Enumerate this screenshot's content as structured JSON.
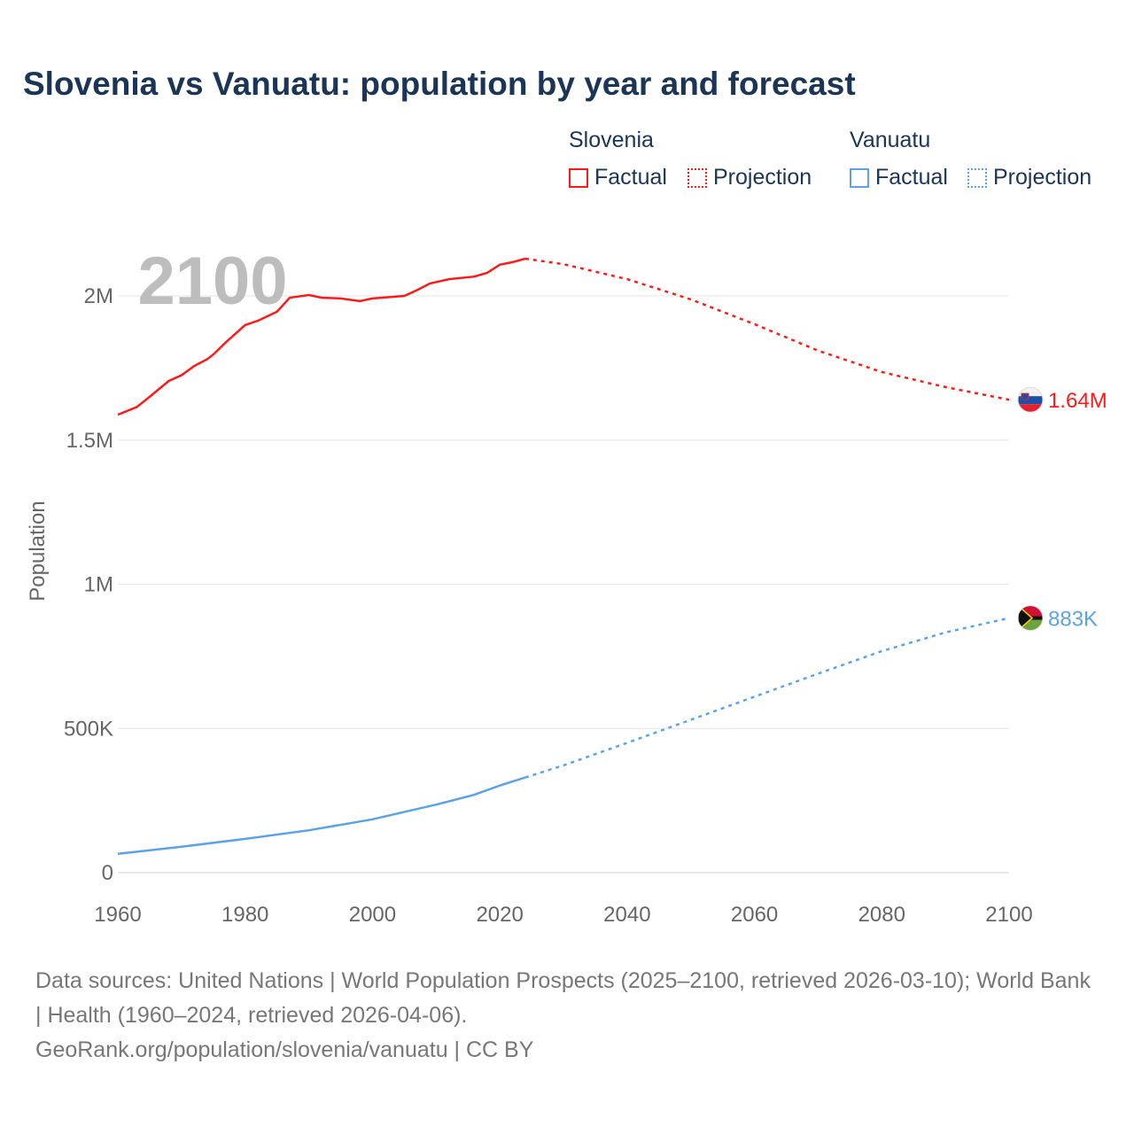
{
  "title": "Slovenia vs Vanuatu: population by year and forecast",
  "legend": {
    "groups": [
      {
        "name": "Slovenia",
        "items": [
          "Factual",
          "Projection"
        ]
      },
      {
        "name": "Vanuatu",
        "items": [
          "Factual",
          "Projection"
        ]
      }
    ]
  },
  "year_label": "2100",
  "footer": {
    "sources": "Data sources: United Nations | World Population Prospects (2025–2100, retrieved 2026-03-10); World Bank | Health (1960–2024, retrieved 2026-04-06).",
    "link": "GeoRank.org/population/slovenia/vanuatu | CC BY"
  },
  "chart_data": {
    "type": "line",
    "title": "Slovenia vs Vanuatu: population by year and forecast",
    "xlabel": "",
    "ylabel": "Population",
    "xlim": [
      1960,
      2100
    ],
    "ylim": [
      0,
      2200000
    ],
    "x_ticks": [
      "1960",
      "1980",
      "2000",
      "2020",
      "2040",
      "2060",
      "2080",
      "2100"
    ],
    "y_ticks": [
      {
        "v": 0,
        "label": "0"
      },
      {
        "v": 500000,
        "label": "500K"
      },
      {
        "v": 1000000,
        "label": "1M"
      },
      {
        "v": 1500000,
        "label": "1.5M"
      },
      {
        "v": 2000000,
        "label": "2M"
      }
    ],
    "grid": true,
    "series": [
      {
        "name": "Slovenia",
        "color": "#ff1a1a",
        "end_label": "1.64M",
        "factual": [
          [
            1960,
            1588000
          ],
          [
            1963,
            1615000
          ],
          [
            1965,
            1650000
          ],
          [
            1968,
            1705000
          ],
          [
            1970,
            1725000
          ],
          [
            1972,
            1757000
          ],
          [
            1974,
            1780000
          ],
          [
            1975,
            1797000
          ],
          [
            1977,
            1840000
          ],
          [
            1980,
            1899000
          ],
          [
            1982,
            1914000
          ],
          [
            1985,
            1945000
          ],
          [
            1987,
            1994000
          ],
          [
            1990,
            2003000
          ],
          [
            1992,
            1994000
          ],
          [
            1995,
            1991000
          ],
          [
            1998,
            1982000
          ],
          [
            2000,
            1991000
          ],
          [
            2005,
            2000000
          ],
          [
            2007,
            2020000
          ],
          [
            2009,
            2043000
          ],
          [
            2012,
            2058000
          ],
          [
            2016,
            2067000
          ],
          [
            2018,
            2080000
          ],
          [
            2020,
            2108000
          ],
          [
            2022,
            2117000
          ],
          [
            2024,
            2129000
          ]
        ],
        "projection": [
          [
            2024,
            2129000
          ],
          [
            2030,
            2110000
          ],
          [
            2040,
            2058000
          ],
          [
            2050,
            1988000
          ],
          [
            2060,
            1902000
          ],
          [
            2070,
            1810000
          ],
          [
            2080,
            1736000
          ],
          [
            2090,
            1684000
          ],
          [
            2100,
            1640000
          ]
        ]
      },
      {
        "name": "Vanuatu",
        "color": "#5ba3e6",
        "end_label": "883K",
        "factual": [
          [
            1960,
            65000
          ],
          [
            1970,
            90000
          ],
          [
            1980,
            117000
          ],
          [
            1990,
            147000
          ],
          [
            2000,
            185000
          ],
          [
            2010,
            236000
          ],
          [
            2016,
            270000
          ],
          [
            2020,
            302000
          ],
          [
            2024,
            330000
          ]
        ],
        "projection": [
          [
            2024,
            330000
          ],
          [
            2030,
            372000
          ],
          [
            2040,
            450000
          ],
          [
            2050,
            530000
          ],
          [
            2060,
            610000
          ],
          [
            2070,
            690000
          ],
          [
            2080,
            768000
          ],
          [
            2090,
            833000
          ],
          [
            2100,
            883000
          ]
        ]
      }
    ]
  }
}
